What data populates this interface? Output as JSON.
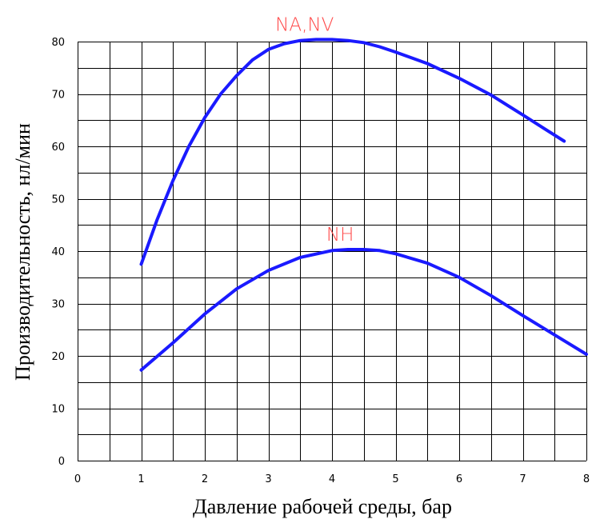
{
  "chart_data": {
    "type": "line",
    "xlabel": "Давление рабочей среды, бар",
    "ylabel": "Производительность, нл/мин",
    "xlim": [
      0,
      8
    ],
    "ylim": [
      0,
      80
    ],
    "x_ticks": [
      "0",
      "1",
      "2",
      "3",
      "4",
      "5",
      "6",
      "7",
      "8"
    ],
    "y_ticks": [
      "0",
      "10",
      "20",
      "30",
      "40",
      "50",
      "60",
      "70",
      "80"
    ],
    "grid": true,
    "series": [
      {
        "name": "NA,NV",
        "color": "#1a1aff",
        "x": [
          1.0,
          1.25,
          1.5,
          1.75,
          2.0,
          2.25,
          2.5,
          2.75,
          3.0,
          3.25,
          3.5,
          3.75,
          4.0,
          4.25,
          4.5,
          4.75,
          5.0,
          5.5,
          6.0,
          6.5,
          7.0,
          7.35,
          7.65
        ],
        "y": [
          37.5,
          46,
          53.5,
          60,
          65.5,
          70,
          73.5,
          76.5,
          78.5,
          79.6,
          80.2,
          80.4,
          80.4,
          80.2,
          79.8,
          79.0,
          78.0,
          75.8,
          73.0,
          69.8,
          66.0,
          63.3,
          61.0
        ]
      },
      {
        "name": "NH",
        "color": "#1a1aff",
        "x": [
          1.0,
          1.5,
          2.0,
          2.5,
          3.0,
          3.5,
          4.0,
          4.25,
          4.5,
          4.75,
          5.0,
          5.5,
          6.0,
          6.5,
          7.0,
          7.5,
          8.0
        ],
        "y": [
          17.3,
          22.5,
          28.0,
          32.8,
          36.3,
          38.8,
          40.1,
          40.3,
          40.3,
          40.1,
          39.5,
          37.7,
          35.0,
          31.5,
          27.7,
          24.0,
          20.3
        ]
      }
    ]
  }
}
